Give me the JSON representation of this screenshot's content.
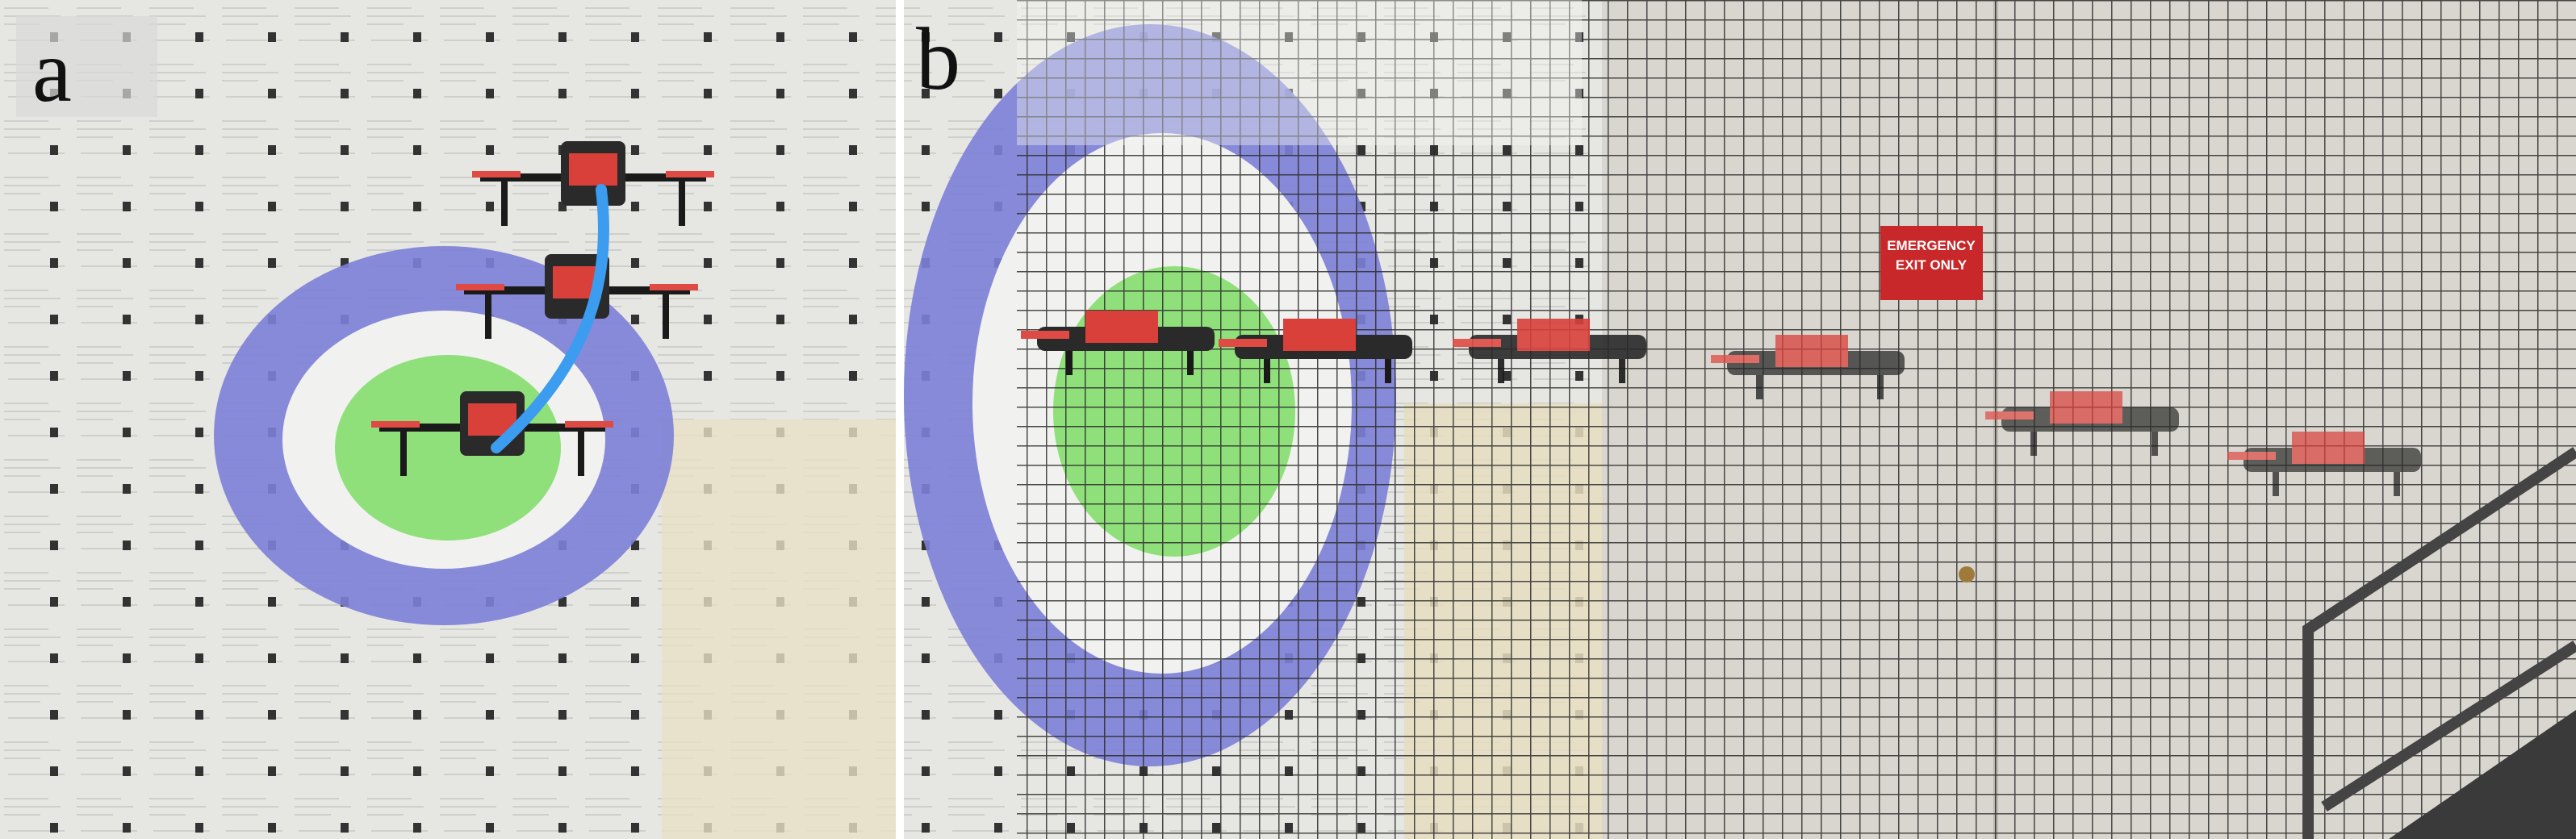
{
  "panels": [
    {
      "label": "a"
    },
    {
      "label": "b",
      "sign": {
        "lines": [
          "EMERGENCY",
          "EXIT ONLY"
        ]
      }
    }
  ]
}
